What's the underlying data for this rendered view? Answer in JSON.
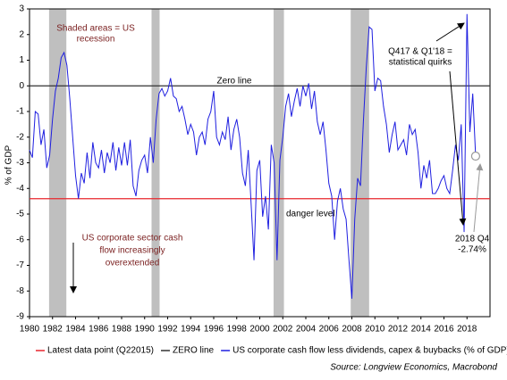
{
  "chart_data": {
    "type": "line",
    "y_label": "% of GDP",
    "xlim": [
      1980,
      2020
    ],
    "xticks": [
      1980,
      1982,
      1984,
      1986,
      1988,
      1990,
      1992,
      1994,
      1996,
      1998,
      2000,
      2002,
      2004,
      2006,
      2008,
      2010,
      2012,
      2014,
      2016,
      2018
    ],
    "ylim": [
      -9,
      3
    ],
    "yticks": [
      -9,
      -8,
      -7,
      -6,
      -5,
      -4,
      -3,
      -2,
      -1,
      0,
      1,
      2,
      3
    ],
    "shaded_periods": [
      [
        1981.7,
        1983.2
      ],
      [
        1990.6,
        1991.3
      ],
      [
        2001.2,
        2002.1
      ],
      [
        2007.9,
        2009.5
      ]
    ],
    "shade_color": "#bfbfbf",
    "reference_lines": [
      {
        "name": "Latest data point (Q22015)",
        "value": -4.4,
        "color": "#e8262d"
      },
      {
        "name": "ZERO line",
        "value": 0,
        "color": "#333333"
      }
    ],
    "series": [
      {
        "name": "US corporate cash flow less dividends, capex & buybacks (% of GDP)",
        "color": "#1f1fe0",
        "x": [
          1980,
          1980.25,
          1980.5,
          1980.75,
          1981,
          1981.25,
          1981.5,
          1981.75,
          1982,
          1982.25,
          1982.5,
          1982.75,
          1983,
          1983.25,
          1983.5,
          1983.75,
          1984,
          1984.25,
          1984.5,
          1984.75,
          1985,
          1985.25,
          1985.5,
          1985.75,
          1986,
          1986.25,
          1986.5,
          1986.75,
          1987,
          1987.25,
          1987.5,
          1987.75,
          1988,
          1988.25,
          1988.5,
          1988.75,
          1989,
          1989.25,
          1989.5,
          1989.75,
          1990,
          1990.25,
          1990.5,
          1990.75,
          1991,
          1991.25,
          1991.5,
          1991.75,
          1992,
          1992.25,
          1992.5,
          1992.75,
          1993,
          1993.25,
          1993.5,
          1993.75,
          1994,
          1994.25,
          1994.5,
          1994.75,
          1995,
          1995.25,
          1995.5,
          1995.75,
          1996,
          1996.25,
          1996.5,
          1996.75,
          1997,
          1997.25,
          1997.5,
          1997.75,
          1998,
          1998.25,
          1998.5,
          1998.75,
          1999,
          1999.25,
          1999.5,
          1999.75,
          2000,
          2000.25,
          2000.5,
          2000.75,
          2001,
          2001.25,
          2001.5,
          2001.75,
          2002,
          2002.25,
          2002.5,
          2002.75,
          2003,
          2003.25,
          2003.5,
          2003.75,
          2004,
          2004.25,
          2004.5,
          2004.75,
          2005,
          2005.25,
          2005.5,
          2005.75,
          2006,
          2006.25,
          2006.5,
          2006.75,
          2007,
          2007.25,
          2007.5,
          2007.75,
          2008,
          2008.25,
          2008.5,
          2008.75,
          2009,
          2009.25,
          2009.5,
          2009.75,
          2010,
          2010.25,
          2010.5,
          2010.75,
          2011,
          2011.25,
          2011.5,
          2011.75,
          2012,
          2012.25,
          2012.5,
          2012.75,
          2013,
          2013.25,
          2013.5,
          2013.75,
          2014,
          2014.25,
          2014.5,
          2014.75,
          2015,
          2015.25,
          2015.5,
          2015.75,
          2016,
          2016.25,
          2016.5,
          2016.75,
          2017,
          2017.25,
          2017.5,
          2017.75,
          2018,
          2018.25,
          2018.5,
          2018.75
        ],
        "values": [
          -2.5,
          -2.8,
          -1.0,
          -1.1,
          -2.3,
          -1.7,
          -3.2,
          -2.7,
          -1.3,
          -0.2,
          0.3,
          1.1,
          1.3,
          0.8,
          -0.5,
          -2.0,
          -3.5,
          -4.4,
          -3.4,
          -3.8,
          -2.6,
          -3.6,
          -2.2,
          -3.0,
          -3.2,
          -2.5,
          -3.4,
          -2.6,
          -3.0,
          -2.2,
          -3.3,
          -2.4,
          -3.1,
          -2.2,
          -3.1,
          -2.1,
          -3.9,
          -4.3,
          -3.3,
          -2.9,
          -2.7,
          -3.4,
          -2.0,
          -3.0,
          -1.3,
          -0.3,
          -0.1,
          -0.4,
          -0.2,
          0.3,
          -0.4,
          -0.5,
          -1.0,
          -0.8,
          -1.3,
          -1.9,
          -1.5,
          -1.8,
          -2.7,
          -2.0,
          -1.8,
          -2.3,
          -1.3,
          -1.0,
          -0.2,
          -2.0,
          -2.3,
          -1.8,
          -2.1,
          -1.2,
          -2.5,
          -1.7,
          -1.3,
          -2.0,
          -3.4,
          -3.9,
          -2.5,
          -4.6,
          -6.8,
          -3.3,
          -2.9,
          -5.1,
          -4.3,
          -5.6,
          -2.3,
          -3.0,
          -6.8,
          -2.9,
          -2.0,
          -0.8,
          -0.3,
          -1.2,
          -0.6,
          -0.1,
          -0.8,
          0.0,
          -0.4,
          0.1,
          -0.9,
          -0.2,
          -1.4,
          -1.9,
          -1.4,
          -2.5,
          -3.8,
          -4.3,
          -6.0,
          -4.5,
          -4.0,
          -4.8,
          -5.2,
          -6.8,
          -8.3,
          -5.2,
          -3.6,
          -3.9,
          -1.4,
          0.7,
          2.3,
          2.2,
          -0.2,
          0.3,
          0.2,
          -0.8,
          -1.5,
          -2.6,
          -1.9,
          -1.4,
          -2.5,
          -2.3,
          -2.1,
          -2.7,
          -1.5,
          -1.9,
          -1.7,
          -2.6,
          -4.0,
          -3.1,
          -3.6,
          -2.9,
          -4.2,
          -4.2,
          -4.0,
          -3.7,
          -3.5,
          -4.0,
          -4.2,
          -3.3,
          -2.3,
          -2.9,
          -1.5,
          -5.7,
          2.8,
          -1.8,
          -0.3,
          -2.74
        ]
      }
    ],
    "highlight_color": "#999999",
    "annotations": [
      {
        "lines": [
          "Zero line"
        ]
      },
      {
        "lines": [
          "danger level"
        ]
      },
      {
        "lines": [
          "Shaded areas = US",
          "recession"
        ]
      },
      {
        "lines": [
          "US corporate sector cash",
          "flow increasingly",
          "overextended"
        ]
      },
      {
        "lines": [
          "Q417 & Q1'18 =",
          "statistical quirks"
        ]
      },
      {
        "lines": [
          "2018 Q4",
          "-2.74%"
        ]
      }
    ],
    "source": "Source: Longview Economics, Macrobond"
  }
}
